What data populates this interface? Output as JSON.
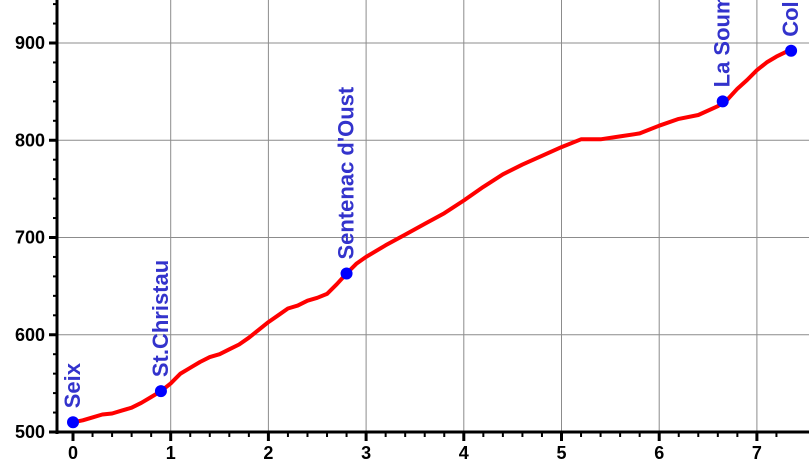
{
  "chart_data": {
    "type": "line",
    "title": "",
    "xlabel": "",
    "ylabel": "",
    "xlim": [
      0,
      7.4
    ],
    "ylim": [
      500,
      940
    ],
    "x_ticks": [
      0,
      1,
      2,
      3,
      4,
      5,
      6,
      7
    ],
    "y_ticks": [
      500,
      600,
      700,
      800,
      900
    ],
    "grid": true,
    "line_color": "#ff0000",
    "marker_color": "#0000ff",
    "label_color": "#3333cc",
    "series": [
      {
        "points": [
          [
            0,
            510
          ],
          [
            0.1,
            512
          ],
          [
            0.2,
            515
          ],
          [
            0.3,
            518
          ],
          [
            0.4,
            519
          ],
          [
            0.5,
            522
          ],
          [
            0.6,
            525
          ],
          [
            0.7,
            530
          ],
          [
            0.8,
            536
          ],
          [
            0.9,
            542
          ],
          [
            1.0,
            550
          ],
          [
            1.1,
            560
          ],
          [
            1.2,
            566
          ],
          [
            1.3,
            572
          ],
          [
            1.4,
            577
          ],
          [
            1.5,
            580
          ],
          [
            1.6,
            585
          ],
          [
            1.7,
            590
          ],
          [
            1.8,
            597
          ],
          [
            1.9,
            605
          ],
          [
            2.0,
            613
          ],
          [
            2.1,
            620
          ],
          [
            2.2,
            627
          ],
          [
            2.3,
            630
          ],
          [
            2.4,
            635
          ],
          [
            2.5,
            638
          ],
          [
            2.6,
            642
          ],
          [
            2.7,
            652
          ],
          [
            2.8,
            663
          ],
          [
            2.9,
            673
          ],
          [
            3.0,
            680
          ],
          [
            3.2,
            692
          ],
          [
            3.4,
            703
          ],
          [
            3.6,
            714
          ],
          [
            3.8,
            725
          ],
          [
            4.0,
            738
          ],
          [
            4.2,
            752
          ],
          [
            4.4,
            765
          ],
          [
            4.6,
            775
          ],
          [
            4.8,
            784
          ],
          [
            5.0,
            793
          ],
          [
            5.2,
            801
          ],
          [
            5.4,
            801
          ],
          [
            5.6,
            804
          ],
          [
            5.8,
            807
          ],
          [
            6.0,
            815
          ],
          [
            6.2,
            822
          ],
          [
            6.4,
            826
          ],
          [
            6.6,
            835
          ],
          [
            6.7,
            842
          ],
          [
            6.8,
            853
          ],
          [
            6.9,
            862
          ],
          [
            7.0,
            872
          ],
          [
            7.1,
            880
          ],
          [
            7.2,
            886
          ],
          [
            7.3,
            891
          ],
          [
            7.35,
            892
          ]
        ]
      }
    ],
    "waypoints": [
      {
        "name": "Seix",
        "x": 0,
        "y": 510
      },
      {
        "name": "St.Christau",
        "x": 0.9,
        "y": 542
      },
      {
        "name": "Sentenac d'Oust",
        "x": 2.8,
        "y": 663
      },
      {
        "name": "La Soumère",
        "x": 6.65,
        "y": 840
      },
      {
        "name": "Col de Catchaudégue",
        "x": 7.35,
        "y": 892
      }
    ]
  }
}
